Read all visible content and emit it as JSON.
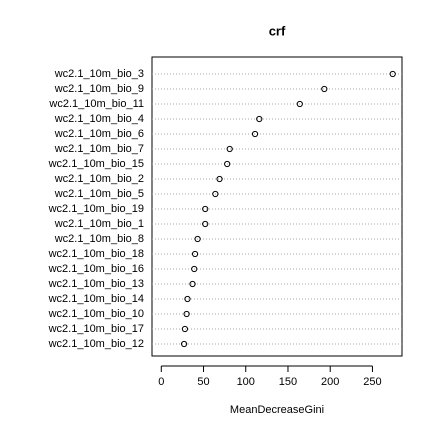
{
  "chart_data": {
    "type": "dotchart",
    "title": "crf",
    "x_label": "MeanDecreaseGini",
    "categories": [
      "wc2.1_10m_bio_3",
      "wc2.1_10m_bio_9",
      "wc2.1_10m_bio_11",
      "wc2.1_10m_bio_4",
      "wc2.1_10m_bio_6",
      "wc2.1_10m_bio_7",
      "wc2.1_10m_bio_15",
      "wc2.1_10m_bio_2",
      "wc2.1_10m_bio_5",
      "wc2.1_10m_bio_19",
      "wc2.1_10m_bio_1",
      "wc2.1_10m_bio_8",
      "wc2.1_10m_bio_18",
      "wc2.1_10m_bio_16",
      "wc2.1_10m_bio_13",
      "wc2.1_10m_bio_14",
      "wc2.1_10m_bio_10",
      "wc2.1_10m_bio_17",
      "wc2.1_10m_bio_12"
    ],
    "values": [
      274,
      193,
      164,
      116,
      111,
      81,
      78,
      69,
      64,
      52,
      52,
      43,
      40,
      39,
      37,
      31,
      30,
      28,
      27
    ],
    "xlim": [
      -11,
      285
    ],
    "xticks": [
      0,
      50,
      100,
      150,
      200,
      250
    ],
    "grid": true,
    "color": "#000000"
  }
}
